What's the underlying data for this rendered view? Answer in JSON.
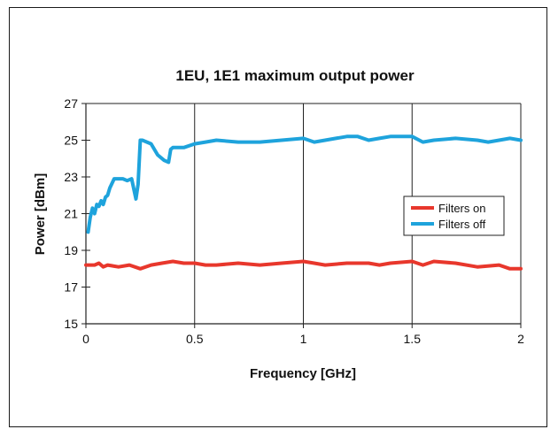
{
  "chart_data": {
    "type": "line",
    "title": "1EU, 1E1 maximum output power",
    "xlabel": "Frequency [GHz]",
    "ylabel": "Power [dBm]",
    "xlim": [
      0,
      2
    ],
    "ylim": [
      15,
      27
    ],
    "xticks": [
      0,
      0.5,
      1,
      1.5,
      2
    ],
    "xtick_labels": [
      "0",
      "0.5",
      "1",
      "1.5",
      "2"
    ],
    "yticks": [
      15,
      17,
      19,
      21,
      23,
      25,
      27
    ],
    "ytick_labels": [
      "15",
      "17",
      "19",
      "21",
      "23",
      "25",
      "27"
    ],
    "grid": "vertical lines at major x ticks",
    "legend_position": "right",
    "series": [
      {
        "name": "Filters on",
        "color": "#e8372c",
        "x": [
          0.0,
          0.04,
          0.06,
          0.08,
          0.1,
          0.15,
          0.2,
          0.25,
          0.3,
          0.35,
          0.4,
          0.45,
          0.5,
          0.55,
          0.6,
          0.7,
          0.8,
          0.9,
          1.0,
          1.05,
          1.1,
          1.2,
          1.3,
          1.35,
          1.4,
          1.5,
          1.55,
          1.6,
          1.7,
          1.8,
          1.9,
          1.95,
          2.0
        ],
        "y": [
          18.2,
          18.2,
          18.3,
          18.1,
          18.2,
          18.1,
          18.2,
          18.0,
          18.2,
          18.3,
          18.4,
          18.3,
          18.3,
          18.2,
          18.2,
          18.3,
          18.2,
          18.3,
          18.4,
          18.3,
          18.2,
          18.3,
          18.3,
          18.2,
          18.3,
          18.4,
          18.2,
          18.4,
          18.3,
          18.1,
          18.2,
          18.0,
          18.0
        ]
      },
      {
        "name": "Filters off",
        "color": "#1ea3dc",
        "x": [
          0.01,
          0.02,
          0.03,
          0.04,
          0.05,
          0.06,
          0.07,
          0.08,
          0.09,
          0.1,
          0.11,
          0.13,
          0.15,
          0.17,
          0.19,
          0.21,
          0.23,
          0.24,
          0.25,
          0.255,
          0.26,
          0.3,
          0.33,
          0.36,
          0.38,
          0.39,
          0.4,
          0.45,
          0.5,
          0.55,
          0.6,
          0.7,
          0.8,
          0.9,
          1.0,
          1.05,
          1.1,
          1.15,
          1.2,
          1.25,
          1.3,
          1.35,
          1.4,
          1.5,
          1.55,
          1.6,
          1.7,
          1.8,
          1.85,
          1.9,
          1.95,
          2.0
        ],
        "y": [
          20.0,
          20.8,
          21.3,
          21.0,
          21.5,
          21.4,
          21.7,
          21.5,
          21.9,
          22.0,
          22.4,
          22.9,
          22.9,
          22.9,
          22.8,
          22.9,
          21.8,
          22.6,
          25.0,
          25.0,
          25.0,
          24.8,
          24.2,
          23.9,
          23.8,
          24.5,
          24.6,
          24.6,
          24.8,
          24.9,
          25.0,
          24.9,
          24.9,
          25.0,
          25.1,
          24.9,
          25.0,
          25.1,
          25.2,
          25.2,
          25.0,
          25.1,
          25.2,
          25.2,
          24.9,
          25.0,
          25.1,
          25.0,
          24.9,
          25.0,
          25.1,
          25.0
        ]
      }
    ]
  }
}
